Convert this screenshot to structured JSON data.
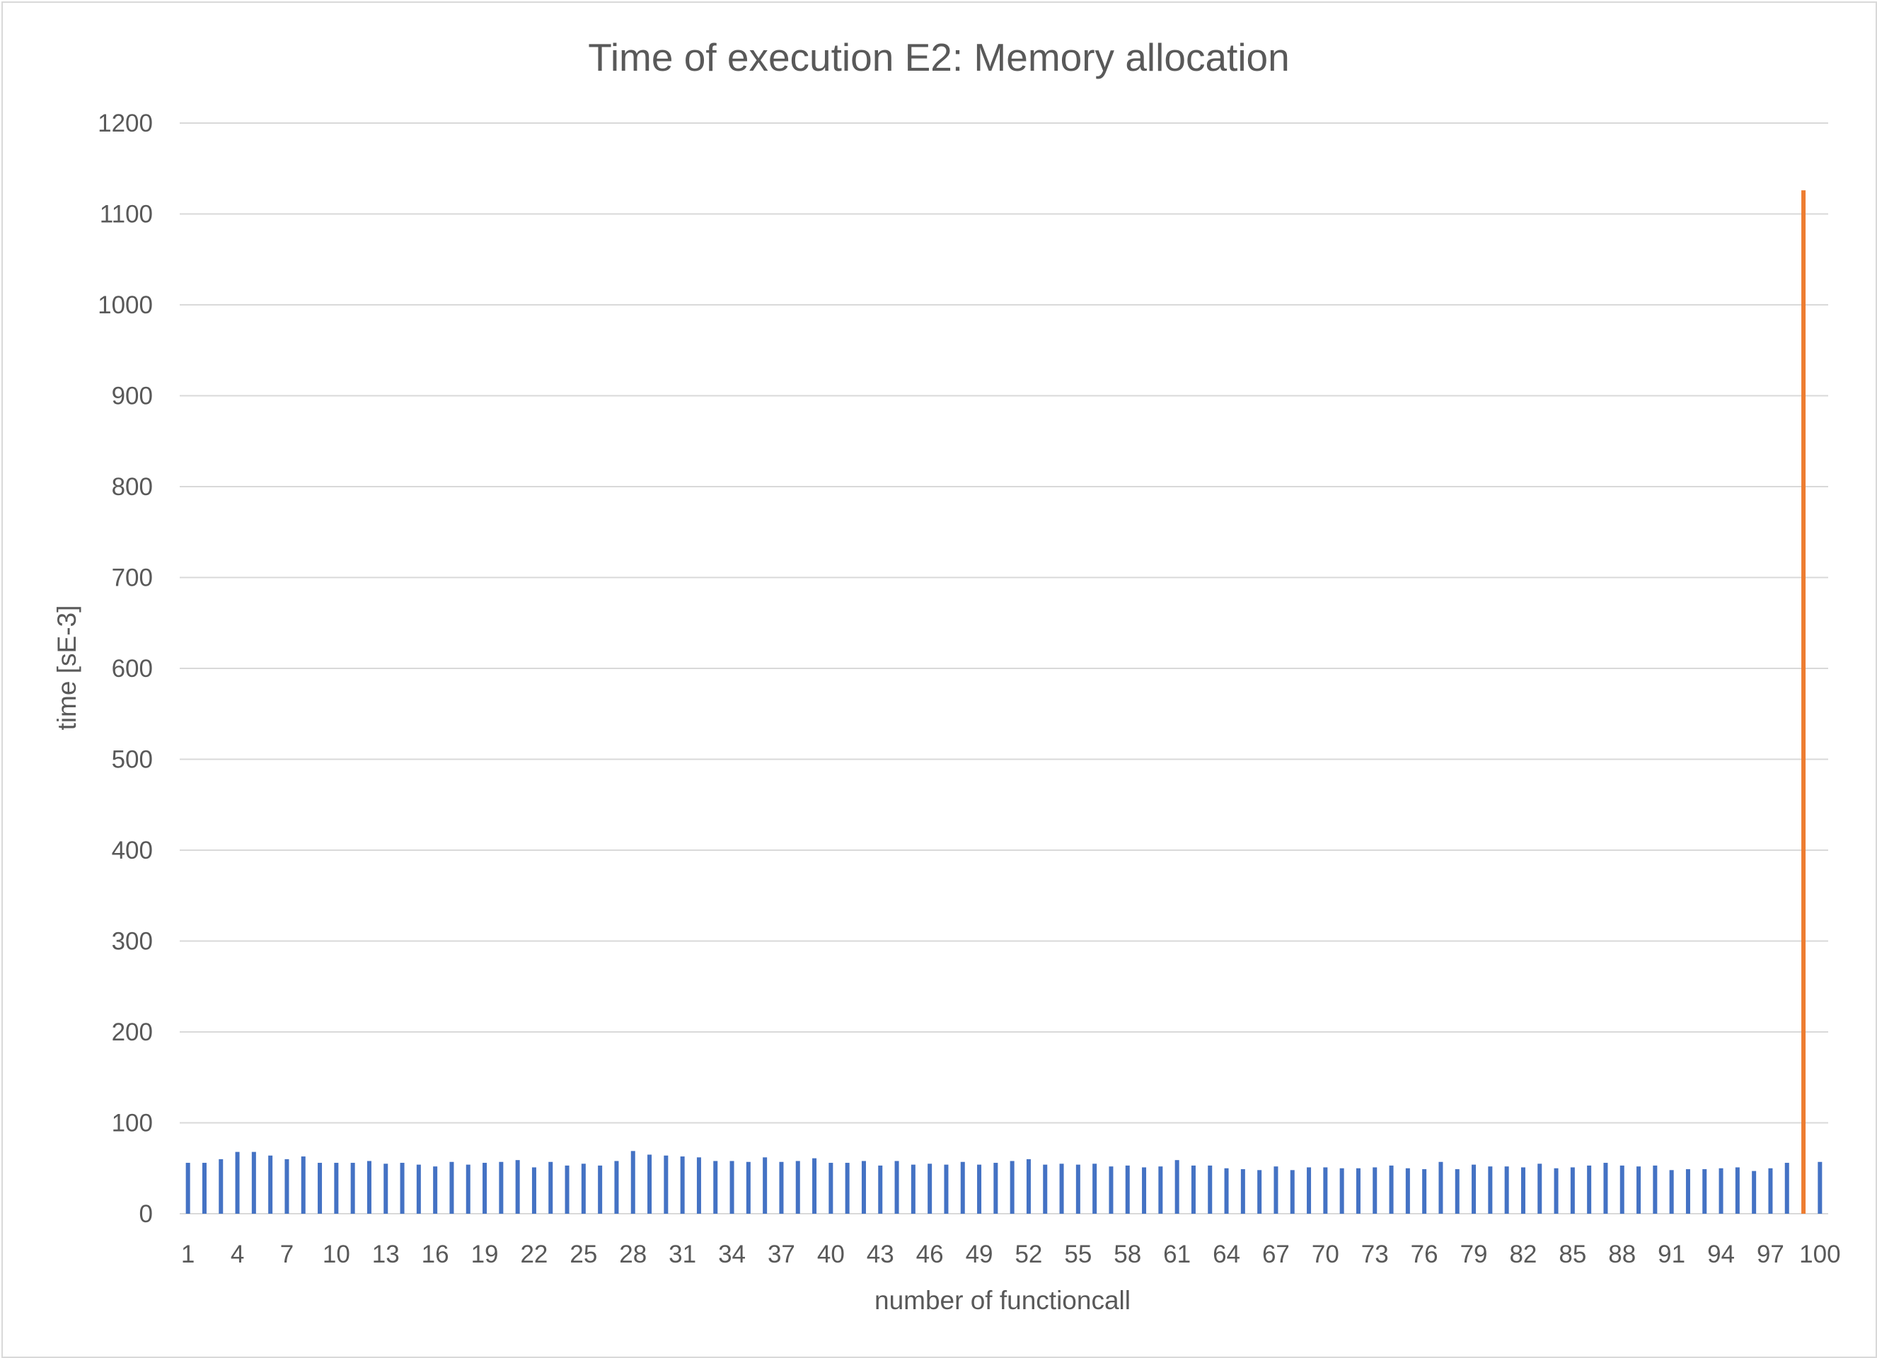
{
  "chart_data": {
    "type": "bar",
    "title": "Time of execution E2: Memory allocation",
    "xlabel": "number of functioncall",
    "ylabel": "time [sE-3]",
    "ylim": [
      0,
      1200
    ],
    "yticks": [
      0,
      100,
      200,
      300,
      400,
      500,
      600,
      700,
      800,
      900,
      1000,
      1100,
      1200
    ],
    "grid": true,
    "categories": [
      1,
      2,
      3,
      4,
      5,
      6,
      7,
      8,
      9,
      10,
      11,
      12,
      13,
      14,
      15,
      16,
      17,
      18,
      19,
      20,
      21,
      22,
      23,
      24,
      25,
      26,
      27,
      28,
      29,
      30,
      31,
      32,
      33,
      34,
      35,
      36,
      37,
      38,
      39,
      40,
      41,
      42,
      43,
      44,
      45,
      46,
      47,
      48,
      49,
      50,
      51,
      52,
      53,
      54,
      55,
      56,
      57,
      58,
      59,
      60,
      61,
      62,
      63,
      64,
      65,
      66,
      67,
      68,
      69,
      70,
      71,
      72,
      73,
      74,
      75,
      76,
      77,
      78,
      79,
      80,
      81,
      82,
      83,
      84,
      85,
      86,
      87,
      88,
      89,
      90,
      91,
      92,
      93,
      94,
      95,
      96,
      97,
      98,
      99,
      100
    ],
    "xtick_labels": [
      "1",
      "4",
      "7",
      "10",
      "13",
      "16",
      "19",
      "22",
      "25",
      "28",
      "31",
      "34",
      "37",
      "40",
      "43",
      "46",
      "49",
      "52",
      "55",
      "58",
      "61",
      "64",
      "67",
      "70",
      "73",
      "76",
      "79",
      "82",
      "85",
      "88",
      "91",
      "94",
      "97",
      "100"
    ],
    "series": [
      {
        "color": "#4472c4",
        "values": [
          56,
          56,
          60,
          68,
          68,
          64,
          60,
          63,
          56,
          56,
          56,
          58,
          55,
          56,
          54,
          52,
          57,
          54,
          56,
          57,
          59,
          51,
          57,
          53,
          55,
          53,
          58,
          69,
          65,
          64,
          63,
          62,
          58,
          58,
          57,
          62,
          57,
          58,
          61,
          56,
          56,
          58,
          53,
          58,
          54,
          55,
          54,
          57,
          54,
          56,
          58,
          60,
          54,
          55,
          54,
          55,
          52,
          53,
          51,
          52,
          59,
          53,
          53,
          50,
          49,
          48,
          52,
          48,
          51,
          51,
          50,
          50,
          51,
          53,
          50,
          49,
          57,
          49,
          54,
          52,
          52,
          51,
          55,
          50,
          51,
          53,
          56,
          53,
          52,
          53,
          48,
          49,
          49,
          50,
          51,
          47,
          50,
          56,
          null,
          57
        ]
      },
      {
        "color": "#ed7d31",
        "values": [
          null,
          null,
          null,
          null,
          null,
          null,
          null,
          null,
          null,
          null,
          null,
          null,
          null,
          null,
          null,
          null,
          null,
          null,
          null,
          null,
          null,
          null,
          null,
          null,
          null,
          null,
          null,
          null,
          null,
          null,
          null,
          null,
          null,
          null,
          null,
          null,
          null,
          null,
          null,
          null,
          null,
          null,
          null,
          null,
          null,
          null,
          null,
          null,
          null,
          null,
          null,
          null,
          null,
          null,
          null,
          null,
          null,
          null,
          null,
          null,
          null,
          null,
          null,
          null,
          null,
          null,
          null,
          null,
          null,
          null,
          null,
          null,
          null,
          null,
          null,
          null,
          null,
          null,
          null,
          null,
          null,
          null,
          null,
          null,
          null,
          null,
          null,
          null,
          null,
          null,
          null,
          null,
          null,
          null,
          null,
          null,
          null,
          null,
          1126,
          null
        ]
      }
    ]
  }
}
